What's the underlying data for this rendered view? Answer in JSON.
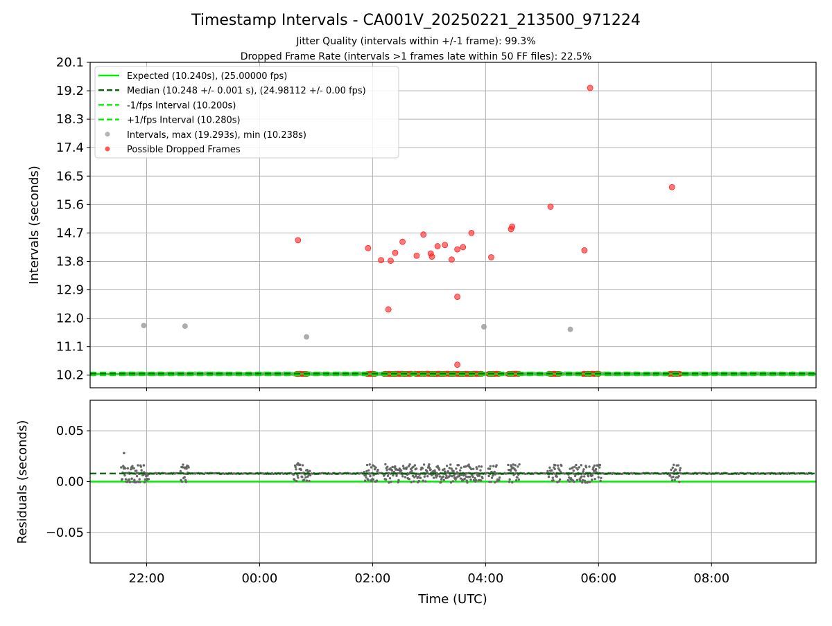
{
  "chart_data": {
    "type": "scatter",
    "title": "Timestamp Intervals - CA001V_20250221_213500_971224",
    "subtitle_lines": [
      "Jitter Quality (intervals within +/-1 frame): 99.3%",
      "Dropped Frame Rate (intervals >1 frames late within 50 FF files): 22.5%"
    ],
    "colors": {
      "expected": "#00ee00",
      "median": "#006400",
      "bound_lines": "#00ee00",
      "intervals": "#999999",
      "dropped": "#ff2020",
      "residual_points": "#666666",
      "grid": "#b0b0b0"
    },
    "top_panel": {
      "ylabel": "Intervals (seconds)",
      "ylim": [
        9.8,
        20.1
      ],
      "yticks": [
        10.2,
        11.1,
        12.0,
        12.9,
        13.8,
        14.7,
        15.6,
        16.5,
        17.4,
        18.3,
        19.2,
        20.1
      ],
      "ytick_labels": [
        "10.2",
        "11.1",
        "12.0",
        "12.9",
        "13.8",
        "14.7",
        "15.6",
        "16.5",
        "17.4",
        "18.3",
        "19.2",
        "20.1"
      ],
      "grid": true,
      "legend_position": "top-left",
      "legend": [
        {
          "label": "Expected (10.240s), (25.00000 fps)",
          "style": "solid",
          "color": "#00ee00"
        },
        {
          "label": "Median (10.248 +/- 0.001 s), (24.98112 +/- 0.00 fps)",
          "style": "dashed",
          "color": "#006400"
        },
        {
          "label": "-1/fps Interval (10.200s)",
          "style": "dashed",
          "color": "#00ee00"
        },
        {
          "label": "+1/fps Interval (10.280s)",
          "style": "dashed",
          "color": "#00ee00"
        },
        {
          "label": "Intervals, max (19.293s), min (10.238s)",
          "style": "marker",
          "color": "#999999"
        },
        {
          "label": "Possible Dropped Frames",
          "style": "marker",
          "color": "#ff2020"
        }
      ],
      "reference_lines": {
        "expected": 10.24,
        "median": 10.248,
        "minus_1fps": 10.2,
        "plus_1fps": 10.28
      },
      "baseline_interval_range_hours": [
        21.6,
        9.8
      ],
      "interval_outliers": [
        {
          "t": 21.95,
          "y": 11.77
        },
        {
          "t": 22.68,
          "y": 11.75
        },
        {
          "t": 0.83,
          "y": 11.41
        },
        {
          "t": 3.97,
          "y": 11.73
        },
        {
          "t": 5.5,
          "y": 11.65
        }
      ],
      "dropped_clusters": [
        {
          "start": 0.65,
          "end": 0.85
        },
        {
          "start": 1.9,
          "end": 2.05
        },
        {
          "start": 2.2,
          "end": 2.7
        },
        {
          "start": 2.75,
          "end": 3.95
        },
        {
          "start": 4.05,
          "end": 4.25
        },
        {
          "start": 4.4,
          "end": 4.6
        },
        {
          "start": 5.12,
          "end": 5.32
        },
        {
          "start": 5.72,
          "end": 6.02
        },
        {
          "start": 7.25,
          "end": 7.45
        }
      ],
      "dropped_points": [
        {
          "t": 0.68,
          "y": 14.47
        },
        {
          "t": 1.92,
          "y": 14.22
        },
        {
          "t": 2.15,
          "y": 13.84
        },
        {
          "t": 2.28,
          "y": 12.28
        },
        {
          "t": 2.32,
          "y": 13.82
        },
        {
          "t": 2.4,
          "y": 14.07
        },
        {
          "t": 2.53,
          "y": 14.42
        },
        {
          "t": 2.78,
          "y": 13.98
        },
        {
          "t": 2.9,
          "y": 14.65
        },
        {
          "t": 3.03,
          "y": 14.05
        },
        {
          "t": 3.05,
          "y": 13.95
        },
        {
          "t": 3.15,
          "y": 14.28
        },
        {
          "t": 3.28,
          "y": 14.32
        },
        {
          "t": 3.4,
          "y": 13.86
        },
        {
          "t": 3.5,
          "y": 12.68
        },
        {
          "t": 3.5,
          "y": 14.18
        },
        {
          "t": 3.5,
          "y": 10.53
        },
        {
          "t": 3.6,
          "y": 14.25
        },
        {
          "t": 3.75,
          "y": 14.7
        },
        {
          "t": 4.1,
          "y": 13.93
        },
        {
          "t": 4.45,
          "y": 14.82
        },
        {
          "t": 4.47,
          "y": 14.9
        },
        {
          "t": 5.15,
          "y": 15.53
        },
        {
          "t": 5.75,
          "y": 14.15
        },
        {
          "t": 5.85,
          "y": 19.29
        },
        {
          "t": 7.3,
          "y": 16.15
        }
      ]
    },
    "bottom_panel": {
      "ylabel": "Residuals (seconds)",
      "ylim": [
        -0.08,
        0.08
      ],
      "yticks": [
        -0.05,
        0.0,
        0.05
      ],
      "ytick_labels": [
        "−0.05",
        "0.00",
        "0.05"
      ],
      "grid": true,
      "reference_lines": {
        "expected": 0.0,
        "median": 0.008
      },
      "notable_residuals": [
        {
          "t": 21.6,
          "y": 0.028
        },
        {
          "t": 21.95,
          "y": 0.016
        },
        {
          "t": 22.7,
          "y": 0.014
        },
        {
          "t": 0.68,
          "y": 0.018
        },
        {
          "t": 4.45,
          "y": 0.016
        }
      ],
      "residual_clusters": [
        {
          "start": 21.55,
          "end": 22.05
        },
        {
          "start": 22.6,
          "end": 22.75
        },
        {
          "start": 0.6,
          "end": 0.9
        },
        {
          "start": 1.85,
          "end": 2.1
        },
        {
          "start": 2.2,
          "end": 3.95
        },
        {
          "start": 4.05,
          "end": 4.25
        },
        {
          "start": 4.4,
          "end": 4.6
        },
        {
          "start": 5.1,
          "end": 5.35
        },
        {
          "start": 5.45,
          "end": 6.05
        },
        {
          "start": 7.25,
          "end": 7.45
        }
      ]
    },
    "x_axis": {
      "xlabel": "Time (UTC)",
      "xlim_hours": [
        21.0,
        9.85
      ],
      "xticks_hours": [
        22,
        24,
        26,
        28,
        30,
        32
      ],
      "xtick_labels": [
        "22:00",
        "00:00",
        "02:00",
        "04:00",
        "06:00",
        "08:00"
      ]
    }
  }
}
